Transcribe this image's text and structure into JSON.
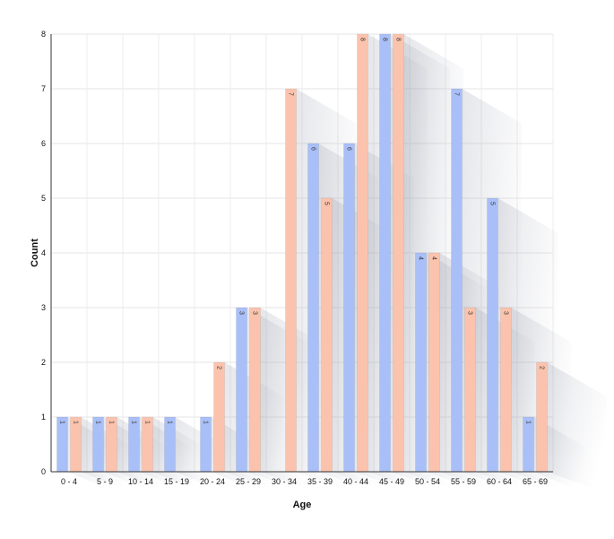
{
  "chart_data": {
    "type": "bar",
    "xlabel": "Age",
    "ylabel": "Count",
    "categories": [
      "0 - 4",
      "5 - 9",
      "10 - 14",
      "15 - 19",
      "20 - 24",
      "25 - 29",
      "30 - 34",
      "35 - 39",
      "40 - 44",
      "45 - 49",
      "50 - 54",
      "55 - 59",
      "60 - 64",
      "65 - 69"
    ],
    "series": [
      {
        "values": [
          1,
          1,
          1,
          1,
          1,
          3,
          0,
          6,
          6,
          8,
          4,
          7,
          5,
          1
        ],
        "color": "#a9bff7"
      },
      {
        "values": [
          1,
          1,
          1,
          0,
          2,
          3,
          7,
          5,
          8,
          8,
          4,
          3,
          3,
          2
        ],
        "color": "#fbc3ad"
      }
    ],
    "ylim": [
      0,
      8
    ],
    "yticks": [
      "0",
      "1",
      "2",
      "3",
      "4",
      "5",
      "6",
      "7",
      "8"
    ],
    "grid": true,
    "data_labels": true,
    "legend": "none"
  }
}
